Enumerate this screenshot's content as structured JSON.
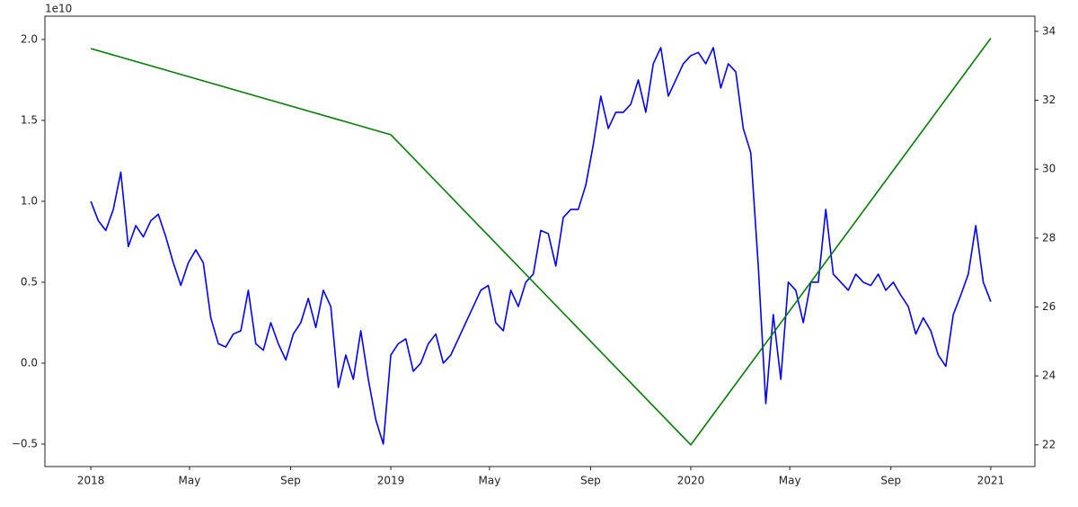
{
  "chart_data": {
    "type": "line",
    "y_offset_label": "1e10",
    "xlim": [
      2017.847,
      2021.147
    ],
    "xticks": [
      {
        "value": 2018,
        "label": "2018"
      },
      {
        "value": 2018.329,
        "label": "May"
      },
      {
        "value": 2018.666,
        "label": "Sep"
      },
      {
        "value": 2019,
        "label": "2019"
      },
      {
        "value": 2019.329,
        "label": "May"
      },
      {
        "value": 2019.666,
        "label": "Sep"
      },
      {
        "value": 2020,
        "label": "2020"
      },
      {
        "value": 2020.33,
        "label": "May"
      },
      {
        "value": 2020.667,
        "label": "Sep"
      },
      {
        "value": 2021,
        "label": "2021"
      }
    ],
    "ylim": [
      -0.639,
      2.144
    ],
    "yticks": [
      {
        "value": -0.5,
        "label": "−0.5"
      },
      {
        "value": 0,
        "label": "0.0"
      },
      0.5,
      {
        "value": 1,
        "label": "1.0"
      },
      1.5,
      {
        "value": 2,
        "label": "2.0"
      }
    ],
    "y2lim": [
      21.37,
      34.44
    ],
    "y2ticks": [
      22,
      24,
      26,
      28,
      30,
      32,
      34
    ],
    "grid": false,
    "series": [
      {
        "color": "#0000ff",
        "x": [
          2018.0,
          2018.025,
          2018.05,
          2018.075,
          2018.1,
          2018.125,
          2018.15,
          2018.175,
          2018.2,
          2018.225,
          2018.25,
          2018.275,
          2018.3,
          2018.325,
          2018.35,
          2018.375,
          2018.4,
          2018.425,
          2018.45,
          2018.475,
          2018.5,
          2018.525,
          2018.55,
          2018.575,
          2018.6,
          2018.625,
          2018.65,
          2018.675,
          2018.7,
          2018.725,
          2018.75,
          2018.775,
          2018.8,
          2018.825,
          2018.85,
          2018.875,
          2018.9,
          2018.925,
          2018.95,
          2018.975,
          2019.0,
          2019.025,
          2019.05,
          2019.075,
          2019.1,
          2019.125,
          2019.15,
          2019.175,
          2019.2,
          2019.225,
          2019.25,
          2019.275,
          2019.3,
          2019.325,
          2019.35,
          2019.375,
          2019.4,
          2019.425,
          2019.45,
          2019.475,
          2019.5,
          2019.525,
          2019.55,
          2019.575,
          2019.6,
          2019.625,
          2019.65,
          2019.675,
          2019.7,
          2019.725,
          2019.75,
          2019.775,
          2019.8,
          2019.825,
          2019.85,
          2019.875,
          2019.9,
          2019.925,
          2019.95,
          2019.975,
          2020.0,
          2020.025,
          2020.05,
          2020.075,
          2020.1,
          2020.125,
          2020.15,
          2020.175,
          2020.2,
          2020.225,
          2020.25,
          2020.275,
          2020.3,
          2020.325,
          2020.35,
          2020.375,
          2020.4,
          2020.425,
          2020.45,
          2020.475,
          2020.5,
          2020.525,
          2020.55,
          2020.575,
          2020.6,
          2020.625,
          2020.65,
          2020.675,
          2020.7,
          2020.725,
          2020.75,
          2020.775,
          2020.8,
          2020.825,
          2020.85,
          2020.875,
          2020.9,
          2020.925,
          2020.95,
          2020.975,
          2021.0
        ],
        "values": [
          1.0,
          0.88,
          0.82,
          0.95,
          1.18,
          0.72,
          0.85,
          0.78,
          0.88,
          0.92,
          0.78,
          0.62,
          0.48,
          0.62,
          0.7,
          0.62,
          0.28,
          0.12,
          0.1,
          0.18,
          0.2,
          0.45,
          0.12,
          0.08,
          0.25,
          0.12,
          0.02,
          0.18,
          0.25,
          0.4,
          0.22,
          0.45,
          0.35,
          -0.15,
          0.05,
          -0.1,
          0.2,
          -0.1,
          -0.35,
          -0.5,
          0.05,
          0.12,
          0.15,
          -0.05,
          0.0,
          0.12,
          0.18,
          0.0,
          0.05,
          0.15,
          0.25,
          0.35,
          0.45,
          0.48,
          0.25,
          0.2,
          0.45,
          0.35,
          0.5,
          0.55,
          0.82,
          0.8,
          0.6,
          0.9,
          0.95,
          0.95,
          1.1,
          1.35,
          1.65,
          1.45,
          1.55,
          1.55,
          1.6,
          1.75,
          1.55,
          1.85,
          1.95,
          1.65,
          1.75,
          1.85,
          1.9,
          1.92,
          1.85,
          1.95,
          1.7,
          1.85,
          1.8,
          1.45,
          1.3,
          0.6,
          -0.25,
          0.3,
          -0.1,
          0.5,
          0.45,
          0.25,
          0.5,
          0.5,
          0.95,
          0.55,
          0.5,
          0.45,
          0.55,
          0.5,
          0.48,
          0.55,
          0.45,
          0.5,
          0.42,
          0.35,
          0.18,
          0.28,
          0.2,
          0.05,
          -0.02,
          0.3,
          0.42,
          0.55,
          0.85,
          0.5,
          0.38
        ]
      },
      {
        "color": "green",
        "axis": "y2",
        "x": [
          2018,
          2019,
          2020,
          2021
        ],
        "values": [
          33.5,
          31.0,
          22.0,
          33.8
        ]
      }
    ]
  }
}
